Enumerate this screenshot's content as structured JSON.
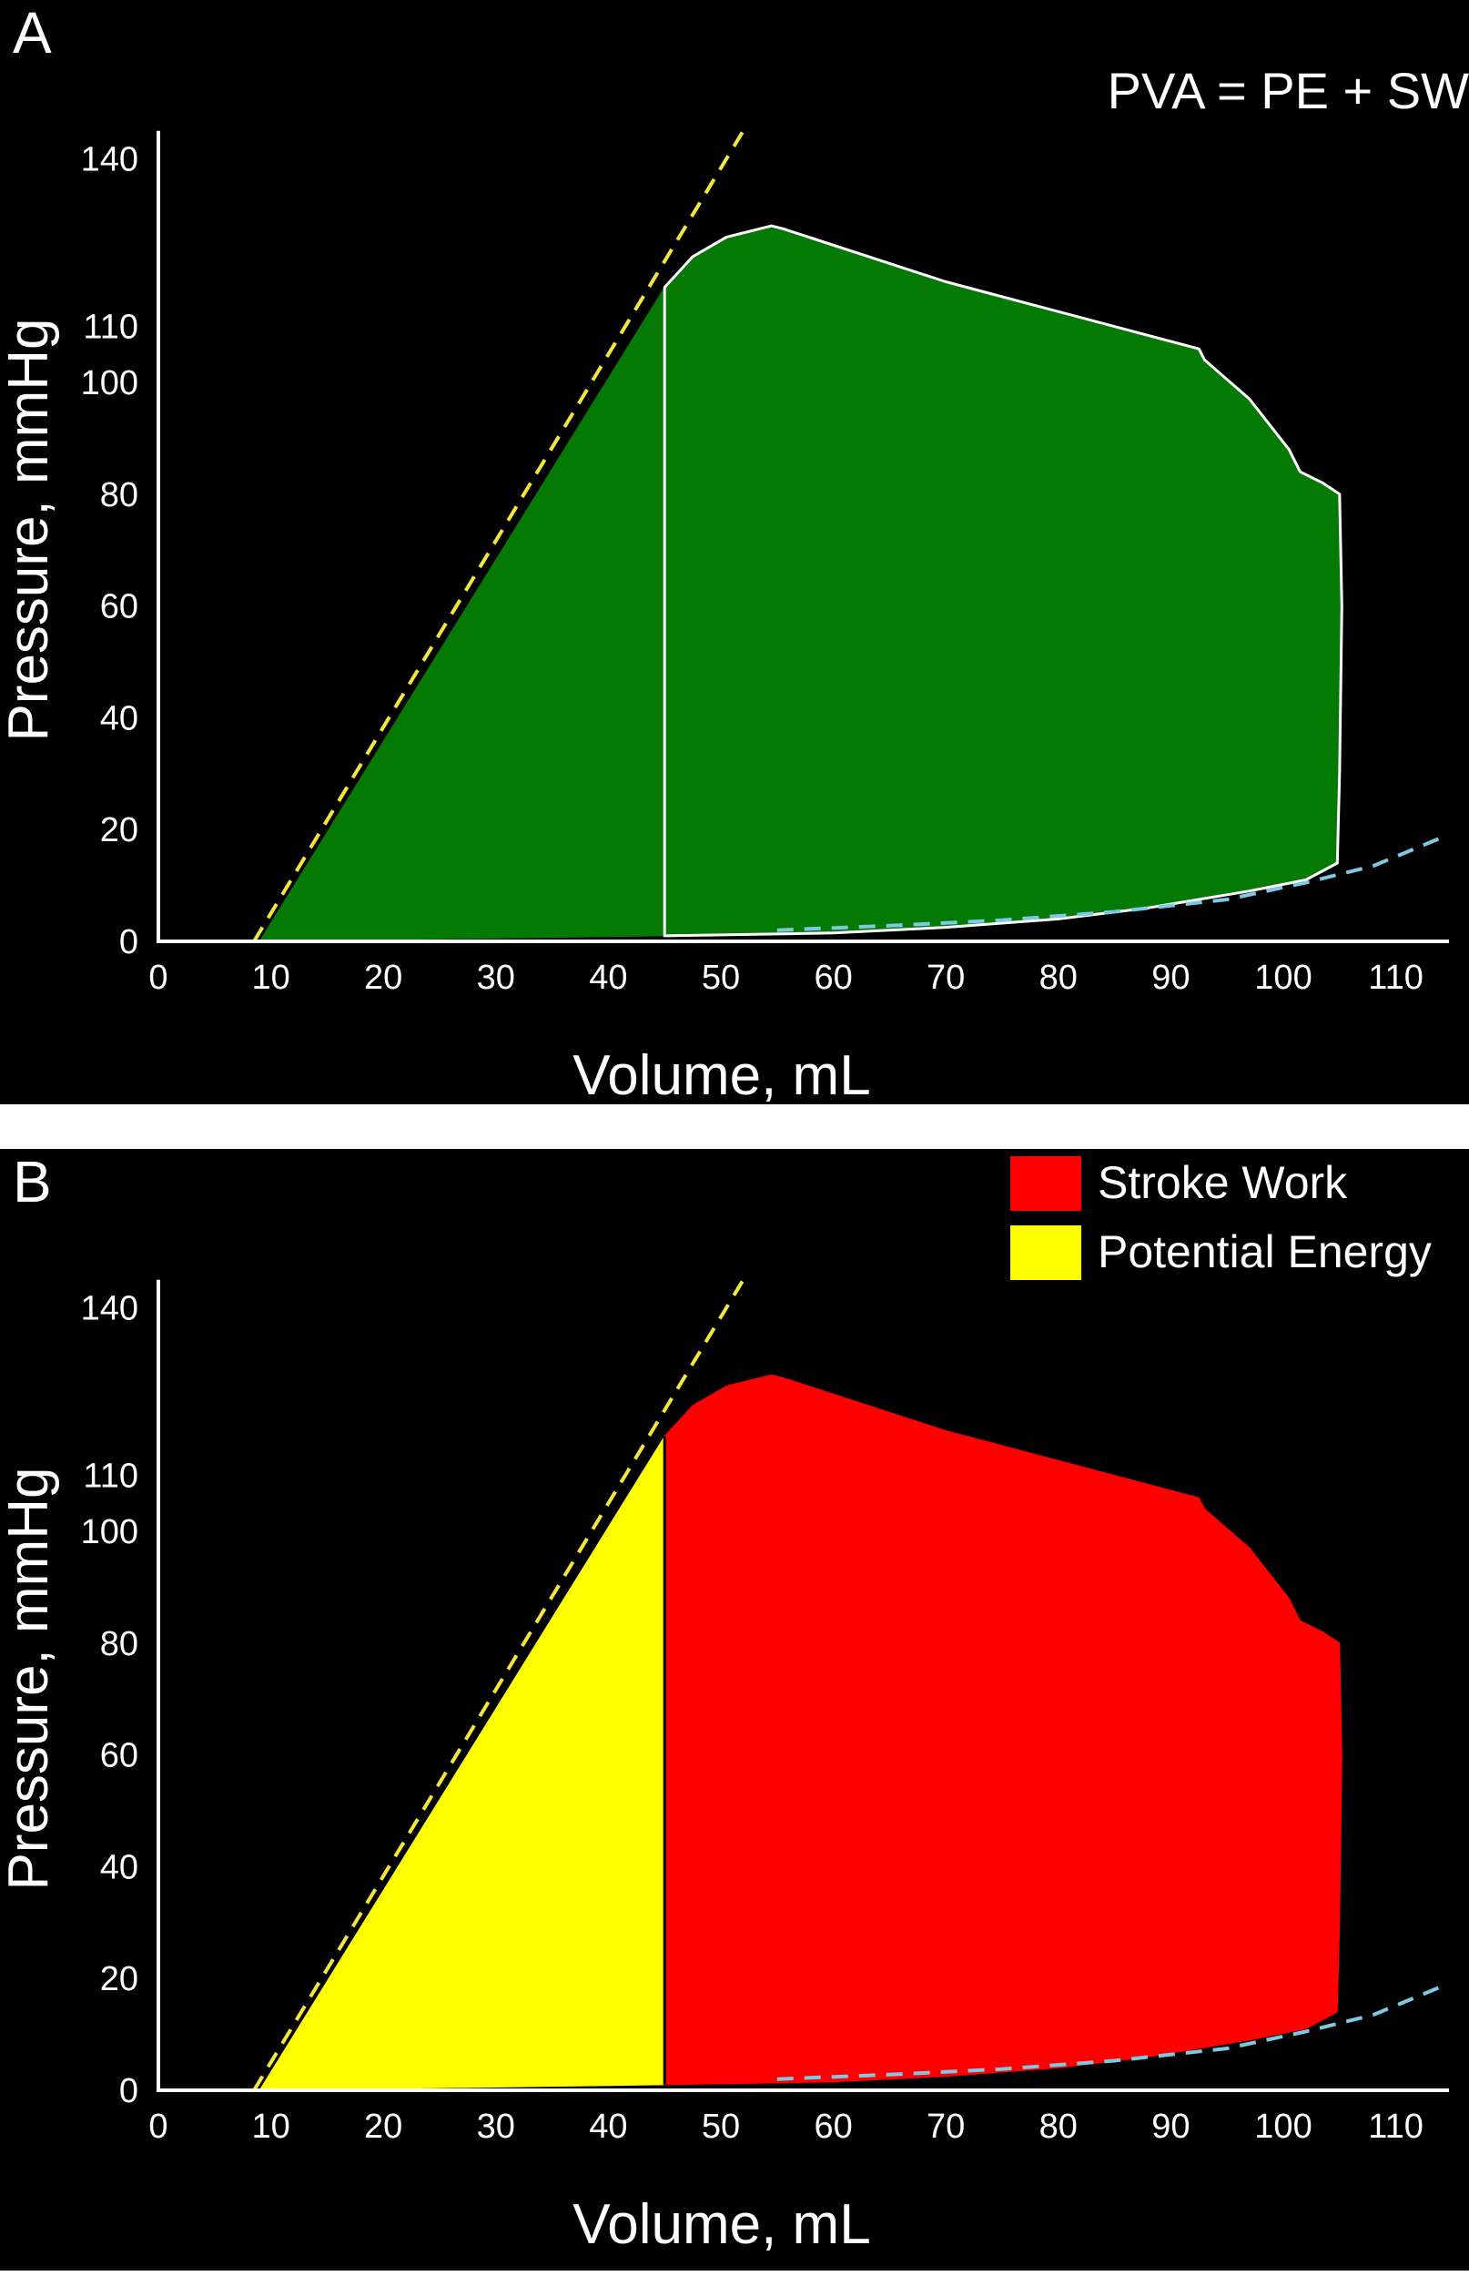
{
  "chart_data": [
    {
      "type": "area",
      "panel_label": "A",
      "annotation": "PVA = PE + SW",
      "xlabel": "Volume, mL",
      "ylabel": "Pressure, mmHg",
      "xticks": [
        "0",
        "10",
        "20",
        "30",
        "40",
        "50",
        "60",
        "70",
        "80",
        "90",
        "100",
        "110"
      ],
      "yticks": [
        {
          "value": 0,
          "label": "0"
        },
        {
          "value": 20,
          "label": "20"
        },
        {
          "value": 40,
          "label": "40"
        },
        {
          "value": 60,
          "label": "60"
        },
        {
          "value": 80,
          "label": "80"
        },
        {
          "value": 100,
          "label": "100"
        },
        {
          "value": 110,
          "label": "110"
        },
        {
          "value": 140,
          "label": "140"
        }
      ],
      "xlim": [
        0,
        115
      ],
      "ylim": [
        0,
        145
      ],
      "grid": false,
      "series": [
        {
          "role": "pv-loop",
          "points": [
            [
              45,
              1
            ],
            [
              45,
              117
            ],
            [
              47.5,
              122.5
            ],
            [
              50.5,
              126
            ],
            [
              54.5,
              128
            ],
            [
              55.5,
              127.5
            ],
            [
              70,
              118
            ],
            [
              92.5,
              106
            ],
            [
              93,
              104
            ],
            [
              97,
              97
            ],
            [
              100.5,
              88
            ],
            [
              101.5,
              84
            ],
            [
              103.5,
              82
            ],
            [
              105,
              80
            ],
            [
              105.2,
              60
            ],
            [
              105,
              30
            ],
            [
              104.8,
              14
            ],
            [
              102,
              11
            ],
            [
              97,
              9
            ],
            [
              88,
              6
            ],
            [
              80,
              4
            ],
            [
              70,
              2.5
            ],
            [
              60,
              1.5
            ],
            [
              45,
              1
            ]
          ]
        },
        {
          "role": "potential-energy-region",
          "points": [
            [
              9,
              0
            ],
            [
              45,
              117
            ],
            [
              45,
              1
            ],
            [
              9,
              0
            ]
          ]
        },
        {
          "role": "espvr",
          "style": "dashed",
          "color": "#f5e63a",
          "points": [
            [
              8.5,
              0
            ],
            [
              52,
              145
            ]
          ]
        },
        {
          "role": "edpvr",
          "style": "dashed",
          "color": "#7ec8e3",
          "points": [
            [
              55,
              2
            ],
            [
              65,
              2.8
            ],
            [
              75,
              3.8
            ],
            [
              85,
              5.3
            ],
            [
              95,
              7.5
            ],
            [
              102,
              10.5
            ],
            [
              108,
              13.5
            ],
            [
              114,
              18.5
            ]
          ]
        }
      ],
      "colors": {
        "fill": "#047a04",
        "loop_outline": "#ffffff"
      }
    },
    {
      "type": "area",
      "panel_label": "B",
      "xlabel": "Volume, mL",
      "ylabel": "Pressure, mmHg",
      "xticks": [
        "0",
        "10",
        "20",
        "30",
        "40",
        "50",
        "60",
        "70",
        "80",
        "90",
        "100",
        "110"
      ],
      "yticks": [
        {
          "value": 0,
          "label": "0"
        },
        {
          "value": 20,
          "label": "20"
        },
        {
          "value": 40,
          "label": "40"
        },
        {
          "value": 60,
          "label": "60"
        },
        {
          "value": 80,
          "label": "80"
        },
        {
          "value": 100,
          "label": "100"
        },
        {
          "value": 110,
          "label": "110"
        },
        {
          "value": 140,
          "label": "140"
        }
      ],
      "xlim": [
        0,
        115
      ],
      "ylim": [
        0,
        145
      ],
      "grid": false,
      "legend_position": "top-right",
      "legend": [
        {
          "label": "Stroke Work",
          "color": "#ff0000"
        },
        {
          "label": "Potential Energy",
          "color": "#ffff00"
        }
      ],
      "series": [
        {
          "name": "Stroke Work",
          "color": "#ff0000",
          "points": [
            [
              45,
              1
            ],
            [
              45,
              117
            ],
            [
              47.5,
              122.5
            ],
            [
              50.5,
              126
            ],
            [
              54.5,
              128
            ],
            [
              55.5,
              127.5
            ],
            [
              70,
              118
            ],
            [
              92.5,
              106
            ],
            [
              93,
              104
            ],
            [
              97,
              97
            ],
            [
              100.5,
              88
            ],
            [
              101.5,
              84
            ],
            [
              103.5,
              82
            ],
            [
              105,
              80
            ],
            [
              105.2,
              60
            ],
            [
              105,
              30
            ],
            [
              104.8,
              14
            ],
            [
              102,
              11
            ],
            [
              97,
              9
            ],
            [
              88,
              6
            ],
            [
              80,
              4
            ],
            [
              70,
              2.5
            ],
            [
              60,
              1.5
            ],
            [
              45,
              1
            ]
          ]
        },
        {
          "name": "Potential Energy",
          "color": "#ffff00",
          "points": [
            [
              9,
              0
            ],
            [
              45,
              117
            ],
            [
              45,
              1
            ],
            [
              9,
              0
            ]
          ]
        },
        {
          "role": "espvr",
          "style": "dashed",
          "color": "#f5e63a",
          "points": [
            [
              8.5,
              0
            ],
            [
              52,
              145
            ]
          ]
        },
        {
          "role": "edpvr",
          "style": "dashed",
          "color": "#7ec8e3",
          "points": [
            [
              55,
              2
            ],
            [
              65,
              2.8
            ],
            [
              75,
              3.8
            ],
            [
              85,
              5.3
            ],
            [
              95,
              7.5
            ],
            [
              102,
              10.5
            ],
            [
              108,
              13.5
            ],
            [
              114,
              18.5
            ]
          ]
        }
      ]
    }
  ]
}
